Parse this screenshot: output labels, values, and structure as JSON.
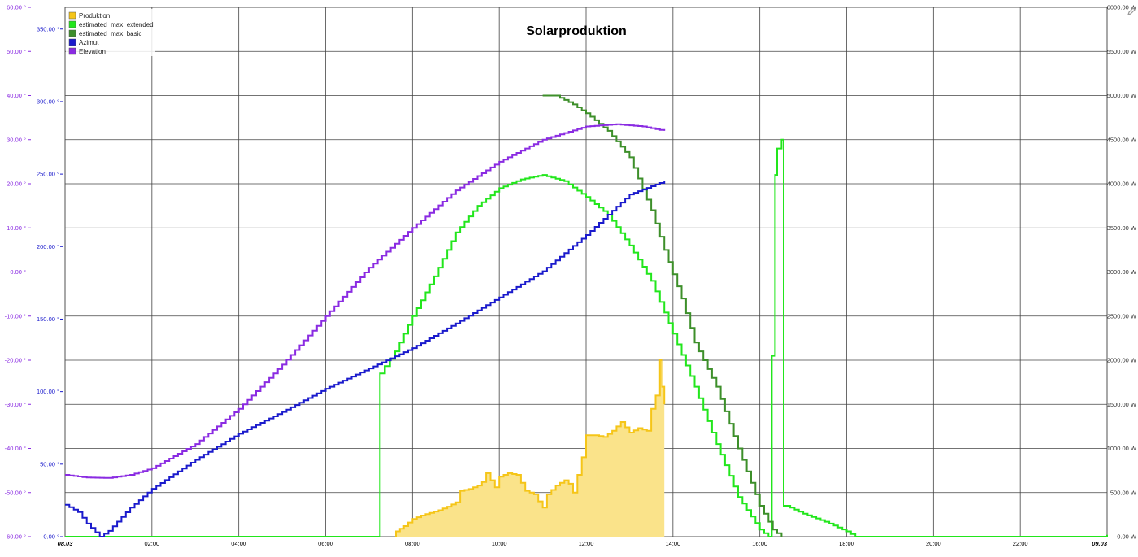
{
  "chart_data": {
    "type": "line",
    "title": "Solarproduktion",
    "x_domain": [
      "08.03 00:00",
      "09.03 00:00"
    ],
    "x_ticks": [
      {
        "h": 0,
        "label": "08.03",
        "bold": true
      },
      {
        "h": 2,
        "label": "02:00"
      },
      {
        "h": 4,
        "label": "04:00"
      },
      {
        "h": 6,
        "label": "06:00"
      },
      {
        "h": 8,
        "label": "08:00"
      },
      {
        "h": 10,
        "label": "10:00"
      },
      {
        "h": 12,
        "label": "12:00"
      },
      {
        "h": 14,
        "label": "14:00"
      },
      {
        "h": 16,
        "label": "16:00"
      },
      {
        "h": 18,
        "label": "18:00"
      },
      {
        "h": 20,
        "label": "20:00"
      },
      {
        "h": 22,
        "label": "22:00"
      },
      {
        "h": 24,
        "label": "09.03",
        "bold": true
      }
    ],
    "y_axes": {
      "elevation": {
        "unit": "°",
        "ylim": [
          -60,
          60
        ],
        "color": "#8a2be2",
        "ticks": [
          "60.00 °",
          "50.00 °",
          "40.00 °",
          "30.00 °",
          "20.00 °",
          "10.00 °",
          "0.00 °",
          "-10.00 °",
          "-20.00 °",
          "-30.00 °",
          "-40.00 °",
          "-50.00 °",
          "-60.00 °"
        ],
        "tick_values": [
          60,
          50,
          40,
          30,
          20,
          10,
          0,
          -10,
          -20,
          -30,
          -40,
          -50,
          -60
        ]
      },
      "azimut": {
        "unit": "°",
        "ylim": [
          0,
          365
        ],
        "color": "#1a1acc",
        "ticks": [
          "350.00 °",
          "300.00 °",
          "250.00 °",
          "200.00 °",
          "150.00 °",
          "100.00 °",
          "50.00 °",
          "0.00 °"
        ],
        "tick_values": [
          350,
          300,
          250,
          200,
          150,
          100,
          50,
          0
        ]
      },
      "power": {
        "unit": "W",
        "ylim": [
          0,
          6000
        ],
        "color": "#333333",
        "ticks": [
          "6000.00 W",
          "5500.00 W",
          "5000.00 W",
          "4500.00 W",
          "4000.00 W",
          "3500.00 W",
          "3000.00 W",
          "2500.00 W",
          "2000.00 W",
          "1500.00 W",
          "1000.00 W",
          "500.00 W",
          "0.00 W"
        ],
        "tick_values": [
          6000,
          5500,
          5000,
          4500,
          4000,
          3500,
          3000,
          2500,
          2000,
          1500,
          1000,
          500,
          0
        ]
      }
    },
    "grid": true,
    "legend_position": "top-left",
    "series": [
      {
        "name": "Produktion",
        "axis": "power",
        "kind": "area",
        "color": "#f5c518",
        "fill": "#fae38a",
        "points": [
          [
            7.6,
            0
          ],
          [
            7.62,
            60
          ],
          [
            7.8,
            120
          ],
          [
            8.0,
            200
          ],
          [
            8.2,
            240
          ],
          [
            8.4,
            270
          ],
          [
            8.6,
            300
          ],
          [
            8.8,
            340
          ],
          [
            9.0,
            390
          ],
          [
            9.1,
            520
          ],
          [
            9.3,
            540
          ],
          [
            9.5,
            580
          ],
          [
            9.6,
            620
          ],
          [
            9.7,
            720
          ],
          [
            9.8,
            640
          ],
          [
            9.9,
            560
          ],
          [
            10.0,
            680
          ],
          [
            10.2,
            720
          ],
          [
            10.4,
            700
          ],
          [
            10.6,
            520
          ],
          [
            10.8,
            480
          ],
          [
            10.9,
            400
          ],
          [
            11.0,
            330
          ],
          [
            11.1,
            480
          ],
          [
            11.3,
            580
          ],
          [
            11.5,
            640
          ],
          [
            11.6,
            600
          ],
          [
            11.7,
            500
          ],
          [
            11.9,
            900
          ],
          [
            12.0,
            1150
          ],
          [
            12.2,
            1150
          ],
          [
            12.4,
            1130
          ],
          [
            12.6,
            1200
          ],
          [
            12.8,
            1300
          ],
          [
            13.0,
            1180
          ],
          [
            13.2,
            1230
          ],
          [
            13.4,
            1200
          ],
          [
            13.5,
            1450
          ],
          [
            13.6,
            1600
          ],
          [
            13.7,
            2000
          ],
          [
            13.75,
            1700
          ],
          [
            13.8,
            1500
          ]
        ]
      },
      {
        "name": "estimated_max_extended",
        "axis": "power",
        "kind": "step",
        "color": "#22e61c",
        "points": [
          [
            0,
            0
          ],
          [
            7.2,
            0
          ],
          [
            7.25,
            1850
          ],
          [
            7.6,
            2100
          ],
          [
            8.0,
            2500
          ],
          [
            8.5,
            2950
          ],
          [
            9.0,
            3450
          ],
          [
            9.5,
            3750
          ],
          [
            10.0,
            3950
          ],
          [
            10.5,
            4050
          ],
          [
            11.0,
            4100
          ],
          [
            11.5,
            4030
          ],
          [
            12.0,
            3850
          ],
          [
            12.5,
            3650
          ],
          [
            13.0,
            3300
          ],
          [
            13.5,
            2900
          ],
          [
            14.0,
            2300
          ],
          [
            14.5,
            1700
          ],
          [
            15.0,
            1050
          ],
          [
            15.5,
            450
          ],
          [
            16.0,
            80
          ],
          [
            16.2,
            0
          ],
          [
            16.35,
            4100
          ],
          [
            16.4,
            4400
          ],
          [
            16.5,
            4500
          ],
          [
            16.55,
            350
          ],
          [
            16.7,
            330
          ],
          [
            17.0,
            260
          ],
          [
            17.5,
            170
          ],
          [
            18.0,
            60
          ],
          [
            18.2,
            0
          ],
          [
            24,
            0
          ],
          [
            24,
            20
          ]
        ]
      },
      {
        "name": "estimated_max_basic",
        "axis": "power",
        "kind": "step",
        "color": "#3d8f2a",
        "points": [
          [
            11.0,
            5000
          ],
          [
            11.3,
            5000
          ],
          [
            11.7,
            4900
          ],
          [
            12.0,
            4800
          ],
          [
            12.5,
            4600
          ],
          [
            13.0,
            4300
          ],
          [
            13.5,
            3700
          ],
          [
            13.8,
            3250
          ],
          [
            14.2,
            2700
          ],
          [
            14.5,
            2200
          ],
          [
            15.0,
            1700
          ],
          [
            15.5,
            1000
          ],
          [
            16.0,
            350
          ],
          [
            16.3,
            80
          ],
          [
            16.5,
            0
          ]
        ]
      },
      {
        "name": "Azimut",
        "axis": "azimut",
        "kind": "step",
        "color": "#1a1acc",
        "points": [
          [
            0,
            22
          ],
          [
            0.3,
            17
          ],
          [
            0.5,
            9
          ],
          [
            0.8,
            0
          ],
          [
            1.0,
            4
          ],
          [
            1.5,
            20
          ],
          [
            2,
            33
          ],
          [
            3,
            53
          ],
          [
            4,
            71
          ],
          [
            5,
            86
          ],
          [
            6,
            102
          ],
          [
            7,
            116
          ],
          [
            8,
            130
          ],
          [
            9,
            147
          ],
          [
            10,
            165
          ],
          [
            11,
            183
          ],
          [
            12,
            208
          ],
          [
            13,
            236
          ],
          [
            13.8,
            245
          ]
        ]
      },
      {
        "name": "Elevation",
        "axis": "elevation",
        "kind": "step",
        "color": "#8a2be2",
        "points": [
          [
            0,
            -46
          ],
          [
            0.5,
            -46.6
          ],
          [
            1,
            -46.7
          ],
          [
            1.5,
            -46
          ],
          [
            2,
            -44.5
          ],
          [
            3,
            -39
          ],
          [
            4,
            -31
          ],
          [
            5,
            -21
          ],
          [
            6,
            -10
          ],
          [
            7,
            1
          ],
          [
            8,
            10
          ],
          [
            9,
            18.5
          ],
          [
            10,
            25
          ],
          [
            11,
            30
          ],
          [
            12,
            33
          ],
          [
            12.7,
            33.5
          ],
          [
            13.3,
            33
          ],
          [
            13.8,
            32
          ]
        ]
      }
    ]
  },
  "legend": [
    {
      "label": "Produktion",
      "color": "#f5c518"
    },
    {
      "label": "estimated_max_extended",
      "color": "#22e61c"
    },
    {
      "label": "estimated_max_basic",
      "color": "#3d8f2a"
    },
    {
      "label": "Azimut",
      "color": "#1a1acc"
    },
    {
      "label": "Elevation",
      "color": "#8a2be2"
    }
  ],
  "icons": {
    "corner": "pencil-icon"
  }
}
